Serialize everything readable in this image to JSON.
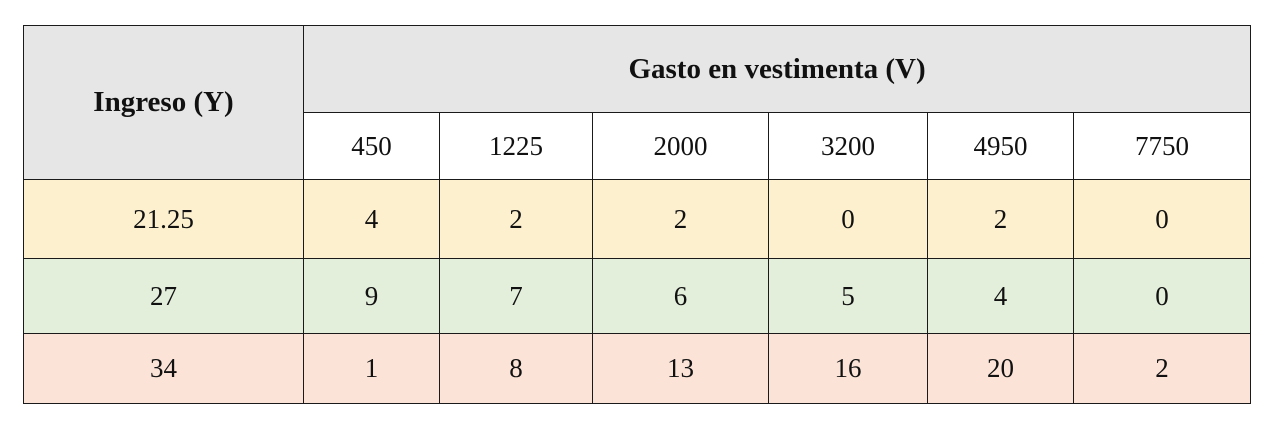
{
  "table": {
    "row_header": "Ingreso (Y)",
    "column_group_header": "Gasto en vestimenta (V)",
    "columns": [
      "450",
      "1225",
      "2000",
      "3200",
      "4950",
      "7750"
    ],
    "rows": [
      {
        "label": "21.25",
        "values": [
          "4",
          "2",
          "2",
          "0",
          "2",
          "0"
        ],
        "color": "#fdf0cf"
      },
      {
        "label": "27",
        "values": [
          "9",
          "7",
          "6",
          "5",
          "4",
          "0"
        ],
        "color": "#e3eedb"
      },
      {
        "label": "34",
        "values": [
          "1",
          "8",
          "13",
          "16",
          "20",
          "2"
        ],
        "color": "#fce3d7"
      }
    ]
  }
}
